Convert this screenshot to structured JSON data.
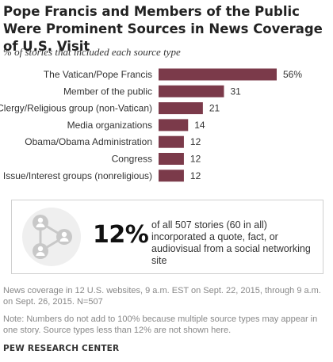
{
  "title": "Pope Francis and Members of the Public Were Prominent Sources in News Coverage of U.S. Visit",
  "subtitle": "% of stories that included each source type",
  "chart_data": {
    "type": "bar",
    "orientation": "horizontal",
    "categories": [
      "The Vatican/Pope Francis",
      "Member of the public",
      "Clergy/Religious group (non-Vatican)",
      "Media organizations",
      "Obama/Obama Administration",
      "Congress",
      "Issue/Interest groups (nonreligious)"
    ],
    "values": [
      56,
      31,
      21,
      14,
      12,
      12,
      12
    ],
    "value_labels": [
      "56%",
      "31",
      "21",
      "14",
      "12",
      "12",
      "12"
    ],
    "xlim": [
      0,
      100
    ],
    "bar_color": "#7b3a4a",
    "grid": false,
    "xlabel": "",
    "ylabel": ""
  },
  "callout": {
    "big_stat": "12%",
    "text": "of all 507 stories (60 in all) incorporated a quote, fact, or audiovisual from a social networking site",
    "icon": "social-network-icon",
    "icon_color": "#c8c8c8"
  },
  "notes": {
    "source": "News coverage in 12 U.S. websites, 9 a.m. EST on Sept. 22, 2015, through 9 a.m. on Sept. 26, 2015. N=507",
    "note": "Note: Numbers do not add to 100% because multiple source types may appear in one story. Source types less than 12% are not shown here."
  },
  "brand": "PEW RESEARCH CENTER"
}
